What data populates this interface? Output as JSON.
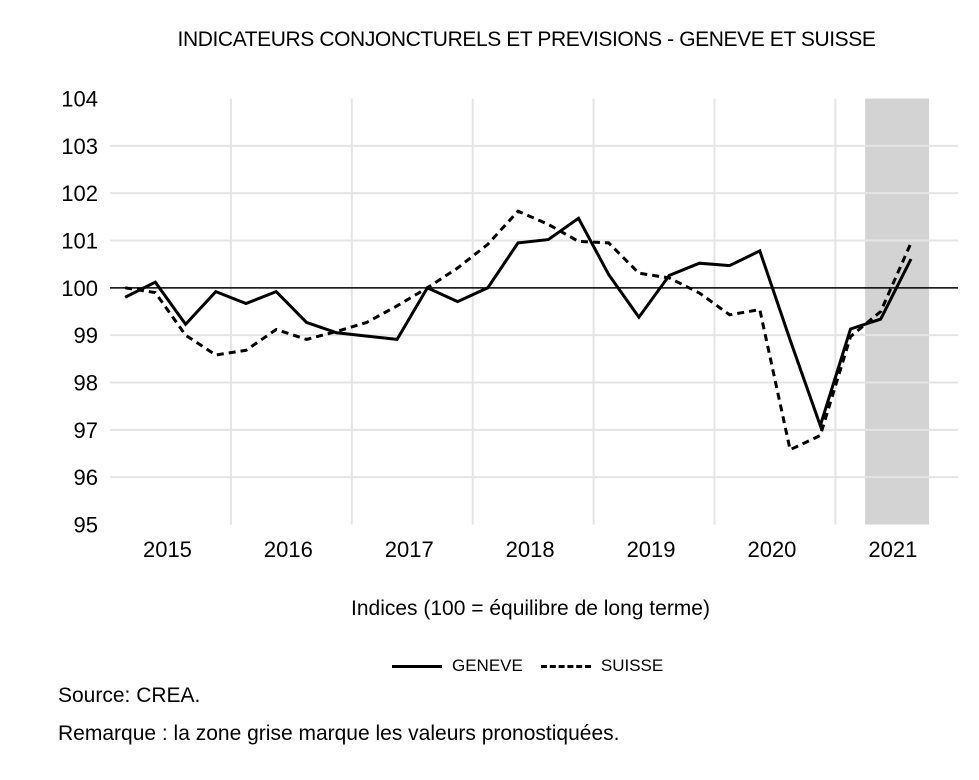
{
  "chart_data": {
    "type": "line",
    "title": "INDICATEURS CONJONCTURELS ET PREVISIONS  - GENEVE ET SUISSE",
    "xlabel": "Indices (100 = équilibre de long terme)",
    "ylabel": "",
    "ylim": [
      95,
      104
    ],
    "yticks": [
      "104",
      "103",
      "102",
      "101",
      "100",
      "99",
      "98",
      "97",
      "96",
      "95"
    ],
    "year_labels": [
      "2015",
      "2016",
      "2017",
      "2018",
      "2019",
      "2020",
      "2021"
    ],
    "x": [
      "2015Q1",
      "2015Q2",
      "2015Q3",
      "2015Q4",
      "2016Q1",
      "2016Q2",
      "2016Q3",
      "2016Q4",
      "2017Q1",
      "2017Q2",
      "2017Q3",
      "2017Q4",
      "2018Q1",
      "2018Q2",
      "2018Q3",
      "2018Q4",
      "2019Q1",
      "2019Q2",
      "2019Q3",
      "2019Q4",
      "2020Q1",
      "2020Q2",
      "2020Q3",
      "2020Q4",
      "2021Q1",
      "2021Q2",
      "2021Q3"
    ],
    "reference_line": 100,
    "forecast_zone": {
      "from": "2021Q2",
      "to": "2021Q4",
      "color": "#d3d3d3"
    },
    "grid": true,
    "legend_position": "bottom",
    "series": [
      {
        "name": "GENEVE",
        "style": "solid",
        "values": [
          99.8,
          100.12,
          99.23,
          99.92,
          99.67,
          99.92,
          99.27,
          99.05,
          98.98,
          98.91,
          100.0,
          99.71,
          100.0,
          100.95,
          101.02,
          101.47,
          100.28,
          99.38,
          100.26,
          100.52,
          100.47,
          100.78,
          98.9,
          97.09,
          99.13,
          99.34,
          100.61
        ]
      },
      {
        "name": "SUISSE",
        "style": "dashed",
        "values": [
          100.0,
          99.9,
          99.0,
          98.58,
          98.68,
          99.12,
          98.91,
          99.08,
          99.27,
          99.62,
          100.0,
          100.42,
          100.92,
          101.62,
          101.34,
          100.98,
          100.95,
          100.31,
          100.21,
          99.89,
          99.43,
          99.54,
          96.58,
          96.88,
          98.97,
          99.5,
          100.95
        ]
      }
    ]
  },
  "footer": {
    "source": "Source: CREA.",
    "remark": "Remarque : la zone grise marque les valeurs pronostiquées."
  }
}
